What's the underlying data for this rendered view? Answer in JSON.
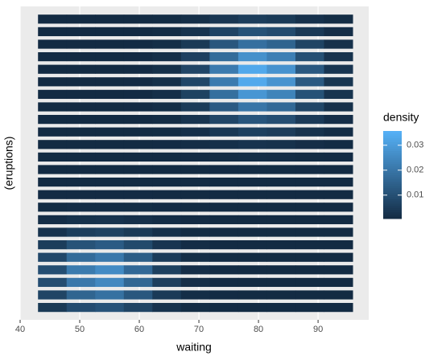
{
  "chart_data": {
    "type": "raster",
    "x_label": "waiting",
    "y_label": "(eruptions)",
    "xlim": [
      40,
      98.5
    ],
    "xticks": [
      40,
      50,
      60,
      70,
      80,
      90
    ],
    "ylim": [
      1.45,
      5.25
    ],
    "x": [
      45.4,
      50.2,
      55.0,
      59.8,
      64.6,
      69.4,
      74.2,
      79.0,
      83.8,
      88.6,
      93.4
    ],
    "y": [
      1.6,
      1.752,
      1.904,
      2.056,
      2.208,
      2.36,
      2.512,
      2.664,
      2.816,
      2.968,
      3.12,
      3.272,
      3.424,
      3.576,
      3.728,
      3.88,
      4.032,
      4.184,
      4.336,
      4.488,
      4.64,
      4.792,
      4.944,
      5.096
    ],
    "values": [
      [
        0.0044,
        0.0093,
        0.0111,
        0.0073,
        0.0028,
        0.001,
        0.0006,
        0.0006,
        0.0006,
        0.0006,
        0.0006
      ],
      [
        0.0073,
        0.0157,
        0.0189,
        0.0122,
        0.0045,
        0.0013,
        0.0007,
        0.0006,
        0.0006,
        0.0006,
        0.0006
      ],
      [
        0.0095,
        0.0208,
        0.025,
        0.0162,
        0.0058,
        0.0015,
        0.0007,
        0.0006,
        0.0006,
        0.0006,
        0.0006
      ],
      [
        0.0098,
        0.0215,
        0.0258,
        0.0167,
        0.006,
        0.0015,
        0.0007,
        0.0006,
        0.0006,
        0.0006,
        0.0006
      ],
      [
        0.008,
        0.0174,
        0.0209,
        0.0136,
        0.0049,
        0.0014,
        0.0007,
        0.0006,
        0.0006,
        0.0006,
        0.0006
      ],
      [
        0.0052,
        0.011,
        0.0132,
        0.0086,
        0.0033,
        0.0011,
        0.0006,
        0.0006,
        0.0006,
        0.0006,
        0.0006
      ],
      [
        0.0028,
        0.0055,
        0.0065,
        0.0044,
        0.0019,
        0.0008,
        0.0006,
        0.0006,
        0.0006,
        0.0006,
        0.0006
      ],
      [
        0.0014,
        0.0024,
        0.0028,
        0.002,
        0.0011,
        0.0007,
        0.0006,
        0.0006,
        0.0006,
        0.0006,
        0.0006
      ],
      [
        0.0008,
        0.0011,
        0.0012,
        0.001,
        0.0007,
        0.0006,
        0.0006,
        0.0006,
        0.0006,
        0.0006,
        0.0006
      ],
      [
        0.0007,
        0.0007,
        0.0007,
        0.0007,
        0.0006,
        0.0006,
        0.0006,
        0.0006,
        0.0006,
        0.0006,
        0.0006
      ],
      [
        0.0006,
        0.0006,
        0.0006,
        0.0006,
        0.0006,
        0.0006,
        0.0006,
        0.0006,
        0.0006,
        0.0006,
        0.0006
      ],
      [
        0.0006,
        0.0006,
        0.0006,
        0.0006,
        0.0006,
        0.0006,
        0.0007,
        0.0008,
        0.0008,
        0.0007,
        0.0006
      ],
      [
        0.0006,
        0.0006,
        0.0006,
        0.0006,
        0.0006,
        0.0007,
        0.001,
        0.0013,
        0.0012,
        0.0008,
        0.0007
      ],
      [
        0.0006,
        0.0006,
        0.0006,
        0.0006,
        0.0007,
        0.0011,
        0.0019,
        0.0027,
        0.0024,
        0.0014,
        0.0008
      ],
      [
        0.0006,
        0.0006,
        0.0006,
        0.0006,
        0.0008,
        0.0017,
        0.004,
        0.006,
        0.0051,
        0.0026,
        0.0011
      ],
      [
        0.0006,
        0.0006,
        0.0006,
        0.0006,
        0.001,
        0.003,
        0.0077,
        0.0117,
        0.0098,
        0.0046,
        0.0015
      ],
      [
        0.0006,
        0.0006,
        0.0006,
        0.0007,
        0.0013,
        0.0047,
        0.013,
        0.0201,
        0.0168,
        0.0077,
        0.0022
      ],
      [
        0.0006,
        0.0006,
        0.0006,
        0.0007,
        0.0017,
        0.0065,
        0.0184,
        0.0286,
        0.0238,
        0.0107,
        0.0029
      ],
      [
        0.0006,
        0.0006,
        0.0006,
        0.0007,
        0.0018,
        0.0076,
        0.0216,
        0.0336,
        0.0279,
        0.0126,
        0.0034
      ],
      [
        0.0006,
        0.0006,
        0.0006,
        0.0007,
        0.0018,
        0.0075,
        0.0214,
        0.0333,
        0.0277,
        0.0124,
        0.0033
      ],
      [
        0.0006,
        0.0006,
        0.0006,
        0.0007,
        0.0016,
        0.0062,
        0.0175,
        0.0272,
        0.0226,
        0.0102,
        0.0028
      ],
      [
        0.0006,
        0.0006,
        0.0006,
        0.0007,
        0.0013,
        0.0044,
        0.0119,
        0.0185,
        0.0154,
        0.0071,
        0.0021
      ],
      [
        0.0006,
        0.0006,
        0.0006,
        0.0006,
        0.001,
        0.0027,
        0.007,
        0.0107,
        0.009,
        0.0043,
        0.0015
      ],
      [
        0.0006,
        0.0006,
        0.0006,
        0.0006,
        0.0008,
        0.0016,
        0.0036,
        0.0053,
        0.0045,
        0.0023,
        0.001
      ]
    ],
    "colorbar": {
      "title": "density",
      "lim": [
        0.0006,
        0.0357
      ],
      "ticks": [
        0.01,
        0.02,
        0.03
      ],
      "low_color": "#132B43",
      "high_color": "#56B1F7"
    },
    "grid": true
  }
}
